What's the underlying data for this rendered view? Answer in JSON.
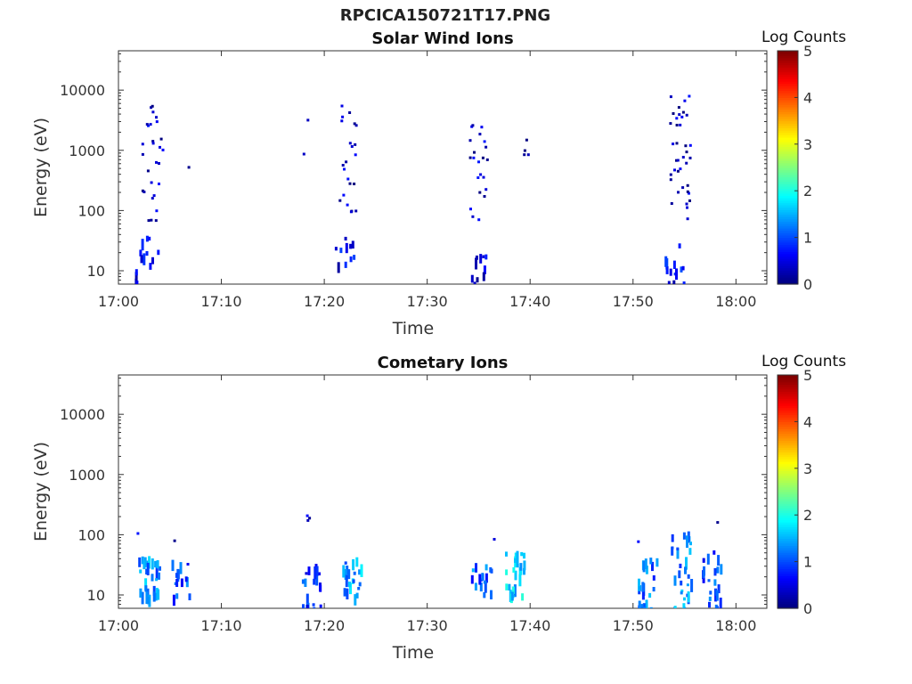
{
  "figure": {
    "title": "RPCICA150721T17.PNG"
  },
  "chart_data": [
    {
      "type": "heatmap",
      "title": "Solar Wind Ions",
      "xlabel": "Time",
      "ylabel": "Energy (eV)",
      "x_ticks": [
        "17:00",
        "17:10",
        "17:20",
        "17:30",
        "17:40",
        "17:50",
        "18:00"
      ],
      "xlim_minutes": [
        0,
        63
      ],
      "y_ticks": [
        "10",
        "100",
        "1000",
        "10000"
      ],
      "ylim": [
        6,
        45000
      ],
      "y_scale": "log",
      "colorbar": {
        "label": "Log Counts",
        "ticks": [
          "0",
          "1",
          "2",
          "3",
          "4",
          "5"
        ],
        "range": [
          0,
          5
        ],
        "colormap": "jet"
      },
      "clusters": [
        {
          "t": 1.5,
          "e_min": 6,
          "e_max": 12,
          "level": 0.5,
          "count": 4
        },
        {
          "t": 2.8,
          "e_min": 12,
          "e_max": 45,
          "level": 0.5,
          "count": 10
        },
        {
          "t": 3.2,
          "e_min": 70,
          "e_max": 7000,
          "level": 0.3,
          "count": 28
        },
        {
          "t": 6.8,
          "e_min": 520,
          "e_max": 600,
          "level": 0.3,
          "count": 1
        },
        {
          "t": 18.0,
          "e_min": 700,
          "e_max": 6500,
          "level": 0.3,
          "count": 2
        },
        {
          "t": 22.0,
          "e_min": 12,
          "e_max": 40,
          "level": 0.5,
          "count": 10
        },
        {
          "t": 22.0,
          "e_min": 90,
          "e_max": 7000,
          "level": 0.3,
          "count": 22
        },
        {
          "t": 34.5,
          "e_min": 6,
          "e_max": 25,
          "level": 0.5,
          "count": 5
        },
        {
          "t": 35.3,
          "e_min": 6,
          "e_max": 25,
          "level": 0.5,
          "count": 5
        },
        {
          "t": 35.0,
          "e_min": 60,
          "e_max": 2800,
          "level": 0.3,
          "count": 22
        },
        {
          "t": 39.5,
          "e_min": 800,
          "e_max": 2200,
          "level": 0.3,
          "count": 4
        },
        {
          "t": 54.0,
          "e_min": 6,
          "e_max": 40,
          "level": 0.6,
          "count": 14
        },
        {
          "t": 54.5,
          "e_min": 70,
          "e_max": 10000,
          "level": 0.3,
          "count": 38
        }
      ]
    },
    {
      "type": "heatmap",
      "title": "Cometary Ions",
      "xlabel": "Time",
      "ylabel": "Energy (eV)",
      "x_ticks": [
        "17:00",
        "17:10",
        "17:20",
        "17:30",
        "17:40",
        "17:50",
        "18:00"
      ],
      "xlim_minutes": [
        0,
        63
      ],
      "y_ticks": [
        "10",
        "100",
        "1000",
        "10000"
      ],
      "ylim": [
        6,
        45000
      ],
      "y_scale": "log",
      "colorbar": {
        "label": "Log Counts",
        "ticks": [
          "0",
          "1",
          "2",
          "3",
          "4",
          "5"
        ],
        "range": [
          0,
          5
        ],
        "colormap": "jet"
      },
      "clusters": [
        {
          "t": 2.9,
          "e_min": 8,
          "e_max": 45,
          "level": 1.3,
          "count": 30
        },
        {
          "t": 1.6,
          "e_min": 100,
          "e_max": 120,
          "level": 0.3,
          "count": 1
        },
        {
          "t": 5.1,
          "e_min": 80,
          "e_max": 90,
          "level": 0.3,
          "count": 1
        },
        {
          "t": 6.1,
          "e_min": 9,
          "e_max": 40,
          "level": 1.0,
          "count": 14
        },
        {
          "t": 18.7,
          "e_min": 6,
          "e_max": 40,
          "level": 0.9,
          "count": 22
        },
        {
          "t": 18.5,
          "e_min": 130,
          "e_max": 280,
          "level": 0.3,
          "count": 3
        },
        {
          "t": 22.5,
          "e_min": 10,
          "e_max": 45,
          "level": 1.4,
          "count": 22
        },
        {
          "t": 35.2,
          "e_min": 10,
          "e_max": 35,
          "level": 1.1,
          "count": 18
        },
        {
          "t": 36.5,
          "e_min": 80,
          "e_max": 90,
          "level": 0.3,
          "count": 1
        },
        {
          "t": 38.4,
          "e_min": 10,
          "e_max": 60,
          "level": 1.7,
          "count": 26
        },
        {
          "t": 51.3,
          "e_min": 6,
          "e_max": 45,
          "level": 1.2,
          "count": 24
        },
        {
          "t": 50.3,
          "e_min": 80,
          "e_max": 90,
          "level": 0.3,
          "count": 1
        },
        {
          "t": 54.6,
          "e_min": 6,
          "e_max": 120,
          "level": 1.3,
          "count": 30
        },
        {
          "t": 57.5,
          "e_min": 6,
          "e_max": 60,
          "level": 0.9,
          "count": 24
        },
        {
          "t": 57.9,
          "e_min": 160,
          "e_max": 180,
          "level": 0.3,
          "count": 1
        }
      ]
    }
  ]
}
